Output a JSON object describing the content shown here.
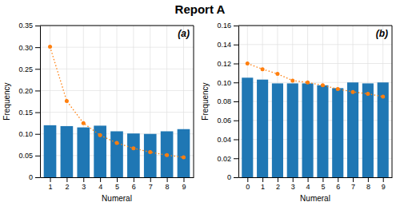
{
  "chart_data": [
    {
      "type": "bar",
      "title": "Report A",
      "annotations": [
        "(a)"
      ],
      "x": [
        1,
        2,
        3,
        4,
        5,
        6,
        7,
        8,
        9
      ],
      "series": [
        {
          "type": "bar",
          "values": [
            0.12,
            0.118,
            0.115,
            0.119,
            0.106,
            0.101,
            0.1,
            0.106,
            0.111
          ]
        },
        {
          "type": "line",
          "marker": "circle",
          "line_style": "dotted",
          "values": [
            0.301,
            0.176,
            0.125,
            0.097,
            0.079,
            0.067,
            0.058,
            0.051,
            0.046
          ]
        }
      ],
      "x_label": "Numeral",
      "y_label": "Frequency",
      "xlim": [
        0.4,
        9.6
      ],
      "xticks": [
        1,
        2,
        3,
        4,
        5,
        6,
        7,
        8,
        9
      ],
      "ylim": [
        0,
        0.35
      ],
      "yticks": [
        0,
        0.05,
        {
          "value": 0.1,
          "label": "0.10"
        },
        0.15,
        {
          "value": 0.2,
          "label": "0.20"
        },
        0.25,
        {
          "value": 0.3,
          "label": "0.30"
        },
        0.35
      ],
      "grid": true
    },
    {
      "type": "bar",
      "annotations": [
        "(b)"
      ],
      "x": [
        0,
        1,
        2,
        3,
        4,
        5,
        6,
        7,
        8,
        9
      ],
      "series": [
        {
          "type": "bar",
          "values": [
            0.105,
            0.103,
            0.099,
            0.099,
            0.099,
            0.097,
            0.094,
            0.1,
            0.099,
            0.1
          ]
        },
        {
          "type": "line",
          "marker": "circle",
          "line_style": "dotted",
          "values": [
            0.12,
            0.114,
            0.109,
            0.102,
            0.1,
            0.097,
            0.093,
            0.09,
            0.088,
            0.085
          ]
        }
      ],
      "x_label": "Numeral",
      "y_label": "Frequency",
      "xlim": [
        -0.6,
        9.6
      ],
      "xticks": [
        0,
        1,
        2,
        3,
        4,
        5,
        6,
        7,
        8,
        9
      ],
      "ylim": [
        0,
        0.16
      ],
      "yticks": [
        0,
        0.02,
        0.04,
        0.06,
        0.08,
        {
          "value": 0.1,
          "label": "0.10"
        },
        0.12,
        0.14,
        0.16
      ],
      "grid": true
    }
  ]
}
